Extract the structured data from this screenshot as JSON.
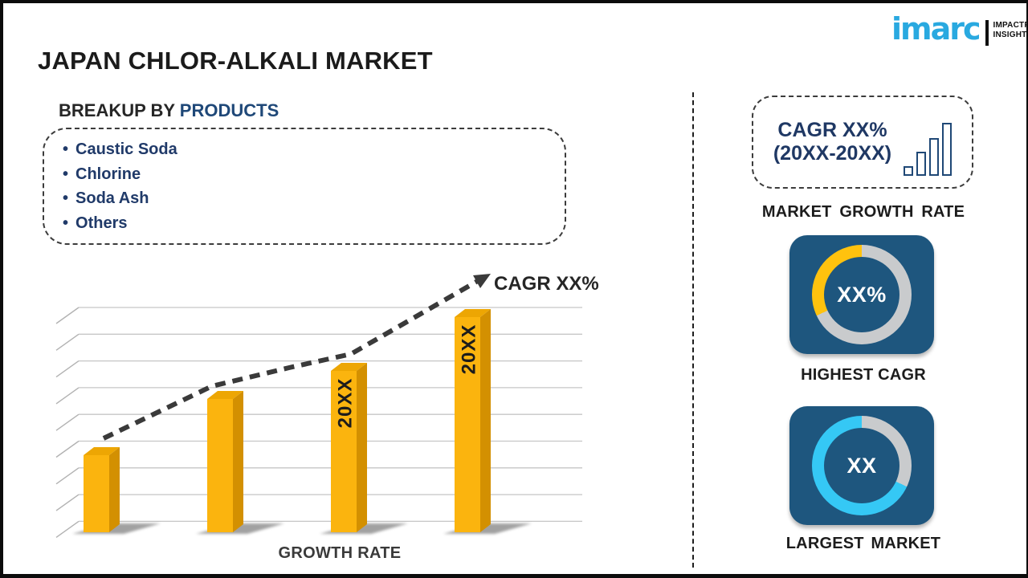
{
  "page": {
    "title": "JAPAN CHLOR-ALKALI MARKET"
  },
  "logo": {
    "brand": "imarc",
    "tagline1": "IMPACTFUL",
    "tagline2": "INSIGHTS",
    "brand_color": "#29A9E0"
  },
  "breakup": {
    "prefix": "BREAKUP BY",
    "highlight": "PRODUCTS",
    "bullet": "•",
    "items": [
      "Caustic Soda",
      "Chlorine",
      "Soda Ash",
      "Others"
    ]
  },
  "chart_data": {
    "type": "bar",
    "xlabel": "GROWTH RATE",
    "categories": [
      "",
      "",
      "20XX",
      "20XX"
    ],
    "values_relative": [
      36,
      62,
      75,
      100
    ],
    "trend_label": "CAGR XX%",
    "trend_style": "dashed-arrow-rising",
    "gridlines": 9,
    "bar_color": "#FBB40E",
    "bar_side_color": "#D39001",
    "bar_top_color": "#EDA603",
    "axis_style": "3d-perspective",
    "legend": "none"
  },
  "sidebar": {
    "growth_box": {
      "line1": "CAGR XX%",
      "line2": "(20XX-20XX)",
      "caption": "MARKET GROWTH RATE",
      "icon": "bar-chart-icon",
      "text_color": "#1F3864"
    },
    "highest_cagr": {
      "value": "XX%",
      "caption": "HIGHEST CAGR",
      "segment_color": "#FFC20E",
      "track_color": "#C9CBCD",
      "panel_color": "#1E567E",
      "segment_sweep_deg": 115
    },
    "largest_market": {
      "value": "XX",
      "caption": "LARGEST MARKET",
      "ring_color": "#35C8F5",
      "track_color": "#C9CBCD",
      "panel_color": "#1E567E",
      "track_gap_deg": 115
    }
  }
}
